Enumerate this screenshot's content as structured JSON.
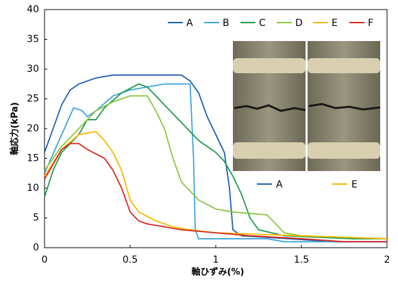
{
  "chart_data": {
    "type": "line",
    "xlabel": "軸ひずみ(%)",
    "ylabel": "軸応力(kPa)",
    "xlim": [
      0,
      2
    ],
    "ylim": [
      0,
      40
    ],
    "xticks": [
      0,
      0.5,
      1,
      1.5,
      2
    ],
    "yticks": [
      0,
      5,
      10,
      15,
      20,
      25,
      30,
      35,
      40
    ],
    "grid": false,
    "legend": "top-right",
    "series": [
      {
        "name": "A",
        "color": "#1f5fae",
        "x": [
          0,
          0.05,
          0.1,
          0.15,
          0.2,
          0.3,
          0.4,
          0.8,
          0.85,
          0.9,
          0.95,
          1.0,
          1.05,
          1.08,
          1.1,
          1.15,
          1.7,
          2
        ],
        "values": [
          16,
          20,
          24,
          26.5,
          27.5,
          28.5,
          29,
          29,
          28,
          26,
          22,
          19,
          16,
          10,
          3,
          2,
          1,
          1
        ]
      },
      {
        "name": "B",
        "color": "#3ea4da",
        "x": [
          0,
          0.1,
          0.17,
          0.22,
          0.25,
          0.3,
          0.4,
          0.5,
          0.6,
          0.7,
          0.85,
          0.87,
          0.88,
          0.9,
          1.3,
          1.4,
          2
        ],
        "values": [
          12.5,
          19,
          23.5,
          23,
          22,
          23,
          25.5,
          26.5,
          27,
          27.5,
          27.5,
          15,
          3,
          1.5,
          1.5,
          1,
          1
        ]
      },
      {
        "name": "C",
        "color": "#1e9a4c",
        "x": [
          0,
          0.05,
          0.1,
          0.2,
          0.25,
          0.3,
          0.35,
          0.45,
          0.55,
          0.6,
          0.7,
          0.8,
          0.9,
          1.0,
          1.05,
          1.1,
          1.15,
          1.2,
          1.25,
          1.4,
          1.8,
          2
        ],
        "values": [
          8.5,
          13,
          16,
          19,
          21.5,
          21.5,
          23.5,
          26,
          27.5,
          27,
          24,
          21,
          18,
          16,
          14.5,
          12,
          9,
          5,
          3,
          2,
          1.5,
          1.5
        ]
      },
      {
        "name": "D",
        "color": "#8cc640",
        "x": [
          0,
          0.1,
          0.2,
          0.3,
          0.4,
          0.5,
          0.6,
          0.65,
          0.7,
          0.75,
          0.8,
          0.9,
          1.0,
          1.1,
          1.3,
          1.35,
          1.4,
          1.5,
          2
        ],
        "values": [
          13,
          17,
          20,
          23,
          24.5,
          25.5,
          25.5,
          23,
          20,
          15,
          11,
          8,
          6.5,
          6,
          5.5,
          4,
          2.5,
          2,
          1.5
        ]
      },
      {
        "name": "E",
        "color": "#f5b800",
        "x": [
          0,
          0.1,
          0.2,
          0.3,
          0.35,
          0.4,
          0.45,
          0.5,
          0.55,
          0.65,
          0.75,
          0.85,
          1.0,
          1.5,
          2
        ],
        "values": [
          12,
          16.5,
          19,
          19.5,
          18,
          16,
          13,
          8,
          6,
          4.5,
          3.5,
          3,
          2.5,
          2,
          1.5
        ]
      },
      {
        "name": "F",
        "color": "#d9261c",
        "x": [
          0,
          0.05,
          0.1,
          0.15,
          0.2,
          0.25,
          0.35,
          0.4,
          0.45,
          0.5,
          0.55,
          0.6,
          0.7,
          0.8,
          1.0,
          1.2,
          1.5,
          1.75,
          2
        ],
        "values": [
          11.5,
          14,
          16.5,
          17.5,
          17.5,
          16.5,
          15,
          13,
          10,
          6,
          4.5,
          4,
          3.5,
          3,
          2.5,
          2,
          1.5,
          1,
          1
        ]
      }
    ]
  }
}
